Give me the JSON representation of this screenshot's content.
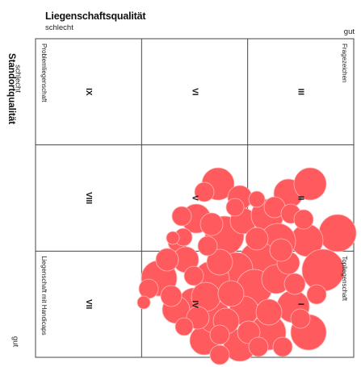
{
  "axis_x": {
    "title": "Liegenschaftsqualität",
    "low": "schlecht",
    "high": "gut"
  },
  "axis_y": {
    "title": "Standortqualität",
    "low": "schlecht",
    "high": "gut"
  },
  "colors": {
    "bubble": "#ff5a5e",
    "grid": "#444444"
  },
  "cells": [
    {
      "numeral": "IX",
      "label": "Problemliegenschaft",
      "row": 0,
      "col": 0
    },
    {
      "numeral": "VI",
      "label": "",
      "row": 0,
      "col": 1
    },
    {
      "numeral": "III",
      "label": "Fragezeichen",
      "row": 0,
      "col": 2
    },
    {
      "numeral": "VIII",
      "label": "",
      "row": 1,
      "col": 0
    },
    {
      "numeral": "V",
      "label": "",
      "row": 1,
      "col": 1
    },
    {
      "numeral": "II",
      "label": "",
      "row": 1,
      "col": 2
    },
    {
      "numeral": "VII",
      "label": "Liegenschaft mit Handicaps",
      "row": 2,
      "col": 0
    },
    {
      "numeral": "IV",
      "label": "",
      "row": 2,
      "col": 1
    },
    {
      "numeral": "I",
      "label": "Topliegenschaft",
      "row": 2,
      "col": 2
    }
  ]
}
